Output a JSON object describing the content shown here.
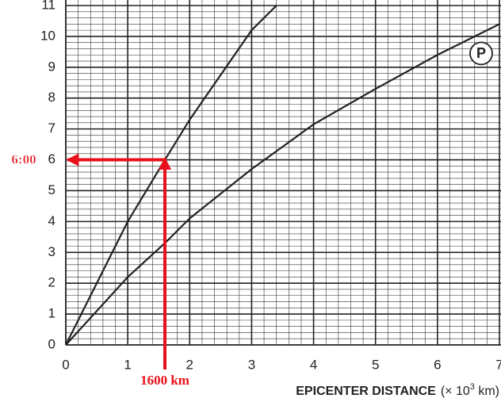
{
  "chart_data": {
    "type": "line",
    "x_label": "EPICENTER DISTANCE",
    "x_unit": [
      "(× 10",
      "3",
      " km)"
    ],
    "series": [
      {
        "name": null,
        "color": "#222222",
        "x": [
          0,
          1,
          1.6,
          2,
          3,
          3.4
        ],
        "values": [
          0,
          4.0,
          6.0,
          7.3,
          10.2,
          11
        ]
      },
      {
        "name": "P",
        "color": "#222222",
        "x": [
          0,
          1,
          1.6,
          2,
          3,
          4,
          5,
          6,
          7
        ],
        "values": [
          0,
          2.2,
          3.3,
          4.1,
          5.7,
          7.15,
          8.3,
          9.4,
          10.4
        ]
      }
    ],
    "marker": {
      "x": 1.6,
      "y": 6,
      "x_label": "1600 km",
      "y_label": "6:00",
      "color": "#e8101a"
    },
    "xlim": [
      0,
      7
    ],
    "ylim": [
      0,
      11
    ],
    "xticks": [
      0,
      1,
      2,
      3,
      4,
      5,
      6,
      7
    ],
    "yticks": [
      0,
      1,
      2,
      3,
      4,
      5,
      6,
      7,
      8,
      9,
      10,
      11
    ],
    "minor_divisions": 5,
    "grid": true
  }
}
